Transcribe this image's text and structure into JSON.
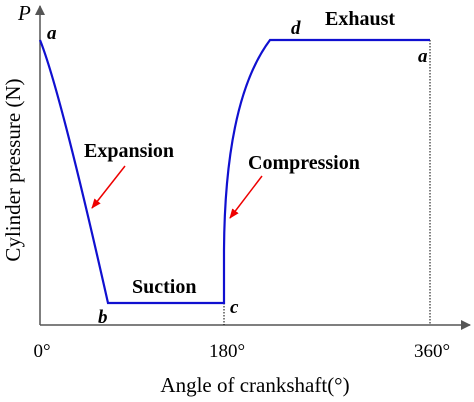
{
  "axes": {
    "y_symbol": "P",
    "y_label": "Cylinder pressure (N)",
    "x_label": "Angle of crankshaft(°)",
    "x_ticks": [
      "0°",
      "180°",
      "360°"
    ]
  },
  "points": [
    "a",
    "b",
    "c",
    "d",
    "a"
  ],
  "phases": [
    "Exhaust",
    "Expansion",
    "Compression",
    "Suction"
  ]
}
